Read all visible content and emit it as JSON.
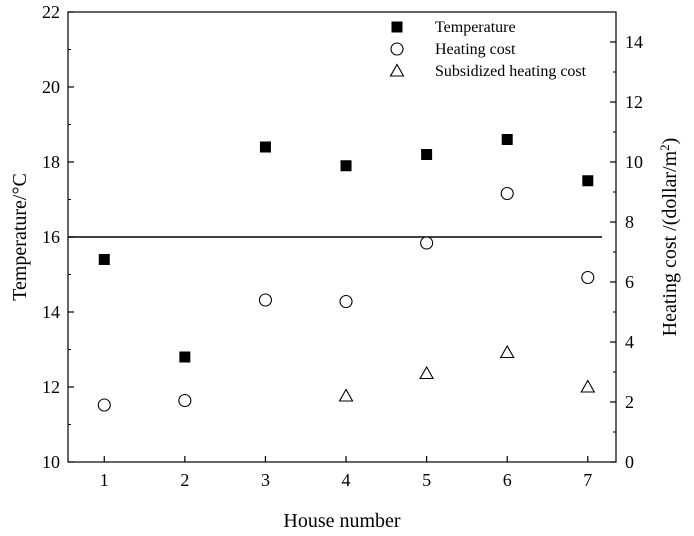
{
  "chart_data": {
    "type": "scatter",
    "xlabel": "House number",
    "ylabel_left": "Temperature/°C",
    "ylabel_right_prefix": "Heating cost /(dollar/m",
    "ylabel_right_sup": "2",
    "ylabel_right_suffix": ")",
    "x_ticks": [
      "1",
      "2",
      "3",
      "4",
      "5",
      "6",
      "7"
    ],
    "xlim": [
      0.55,
      7.35
    ],
    "ylim_left": [
      10,
      22
    ],
    "ylim_right": [
      0,
      15
    ],
    "left_ticks": [
      "10",
      "12",
      "14",
      "16",
      "18",
      "20",
      "22"
    ],
    "right_ticks": [
      "0",
      "2",
      "4",
      "6",
      "8",
      "10",
      "12",
      "14"
    ],
    "reference_line": {
      "axis": "left",
      "value": 16
    },
    "legend_position": "top-right",
    "series": [
      {
        "name": "Temperature",
        "axis": "left",
        "marker": "filled-square",
        "x": [
          1,
          2,
          3,
          4,
          5,
          6,
          7
        ],
        "y": [
          15.4,
          12.8,
          18.4,
          17.9,
          18.2,
          18.6,
          17.5
        ]
      },
      {
        "name": "Heating cost",
        "axis": "right",
        "marker": "open-circle",
        "x": [
          1,
          2,
          3,
          4,
          5,
          6,
          7
        ],
        "y": [
          1.9,
          2.05,
          5.4,
          5.35,
          7.3,
          8.95,
          6.15
        ]
      },
      {
        "name": "Subsidized heating cost",
        "axis": "right",
        "marker": "open-triangle",
        "x": [
          4,
          5,
          6,
          7
        ],
        "y": [
          2.2,
          2.95,
          3.65,
          2.5
        ]
      }
    ]
  }
}
